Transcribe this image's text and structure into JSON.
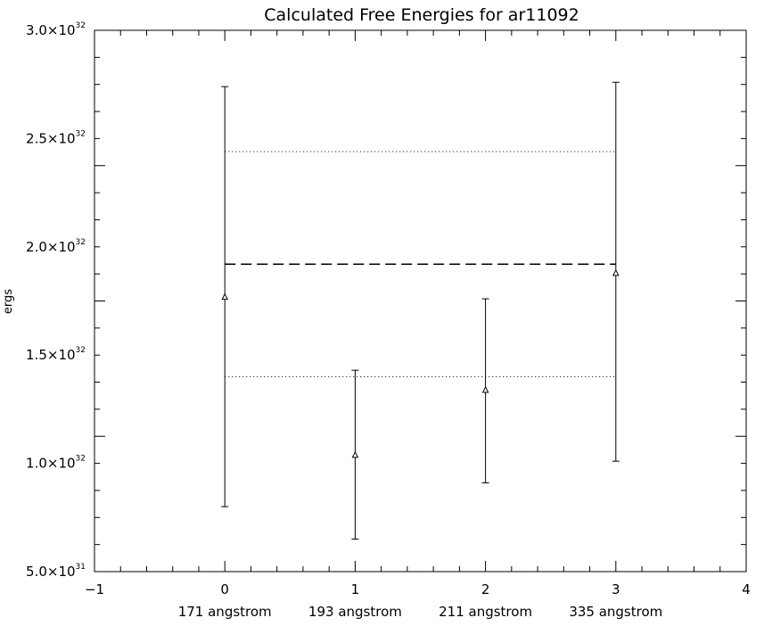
{
  "chart_data": {
    "type": "scatter",
    "title": "Calculated Free Energies for ar11092",
    "ylabel": "ergs",
    "xlabel": "",
    "xlim": [
      -1,
      4
    ],
    "ylim": [
      5e+31,
      3e+32
    ],
    "x_ticks": [
      "−1",
      "0",
      "1",
      "2",
      "3",
      "4"
    ],
    "y_ticks": [
      {
        "value": 5e+31,
        "mantissa": "5.0",
        "exp": "31"
      },
      {
        "value": 1e+32,
        "mantissa": "1.0",
        "exp": "32"
      },
      {
        "value": 1.5e+32,
        "mantissa": "1.5",
        "exp": "32"
      },
      {
        "value": 2e+32,
        "mantissa": "2.0",
        "exp": "32"
      },
      {
        "value": 2.5e+32,
        "mantissa": "2.5",
        "exp": "32"
      },
      {
        "value": 3e+32,
        "mantissa": "3.0",
        "exp": "32"
      }
    ],
    "categories": [
      "171 angstrom",
      "193 angstrom",
      "211 angstrom",
      "335 angstrom"
    ],
    "points": [
      {
        "x": 0,
        "y": 1.77e+32,
        "ymin": 8e+31,
        "ymax": 2.74e+32
      },
      {
        "x": 1,
        "y": 1.04e+32,
        "ymin": 6.5e+31,
        "ymax": 1.43e+32
      },
      {
        "x": 2,
        "y": 1.34e+32,
        "ymin": 9.1e+31,
        "ymax": 1.76e+32
      },
      {
        "x": 3,
        "y": 1.88e+32,
        "ymin": 1.01e+32,
        "ymax": 2.76e+32
      }
    ],
    "reference_lines": [
      {
        "style": "dashed",
        "y": 1.92e+32,
        "x_range": [
          0,
          3
        ]
      },
      {
        "style": "dotted",
        "y": 2.44e+32,
        "x_range": [
          0,
          3
        ]
      },
      {
        "style": "dotted",
        "y": 1.4e+32,
        "x_range": [
          0,
          3
        ]
      }
    ],
    "grid": false,
    "marker": "triangle"
  }
}
